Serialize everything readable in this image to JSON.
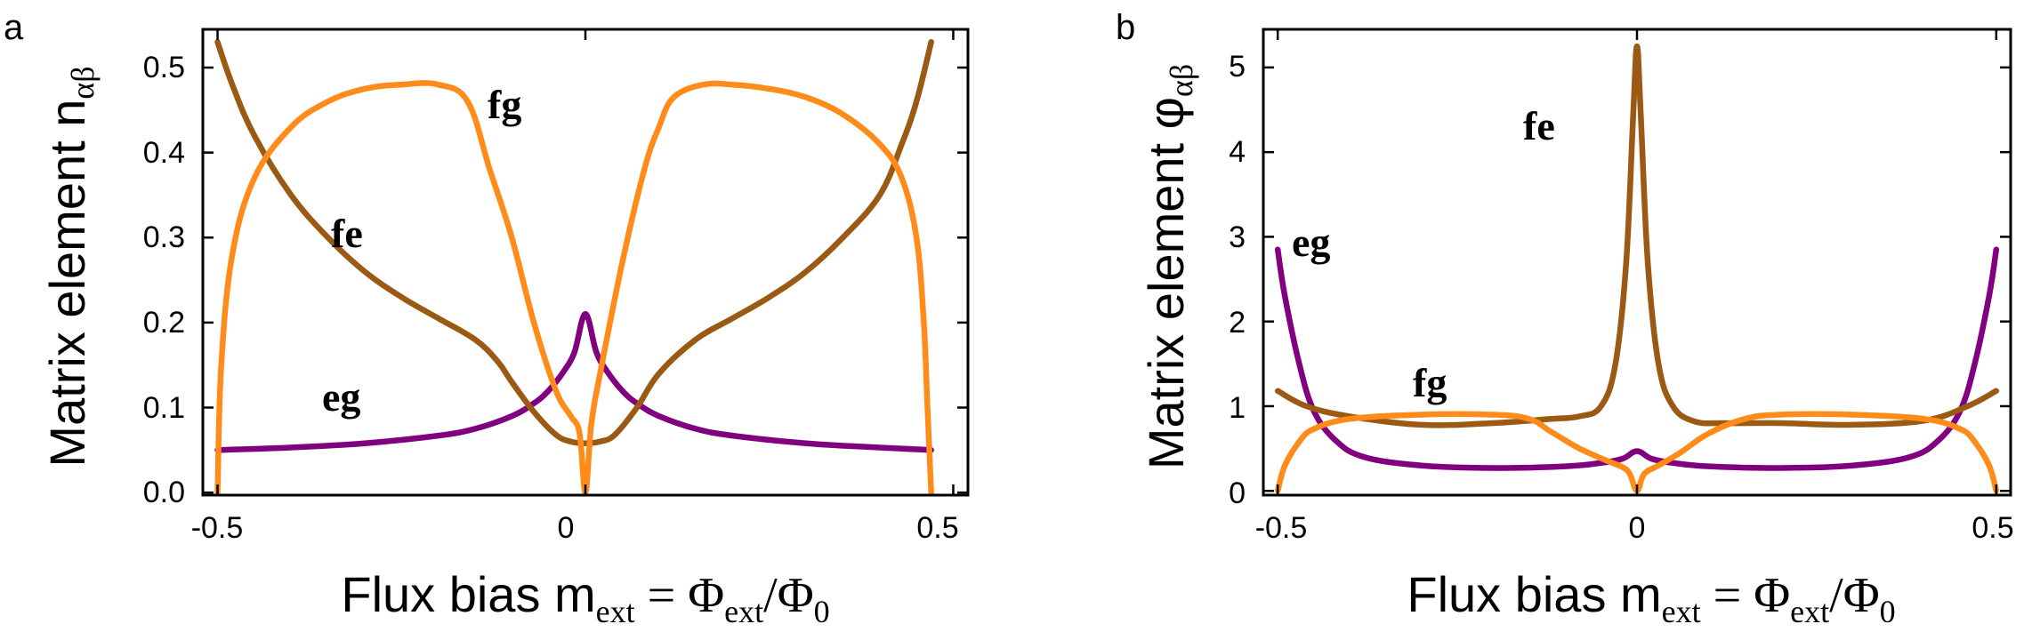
{
  "colors": {
    "eg": "#800080",
    "fe": "#9B5A14",
    "fg": "#FF8C1A"
  },
  "chart_data": [
    {
      "panel": "a",
      "type": "line",
      "title": "",
      "xlabel": {
        "main": "Flux bias m",
        "sub": "ext",
        "eq": " = Φ",
        "sub2": "ext",
        "slash": "/Φ",
        "sub3": "0"
      },
      "ylabel": {
        "main": "Matrix element n",
        "sub": "αβ"
      },
      "xlim": [
        -0.52,
        0.52
      ],
      "ylim": [
        -0.003,
        0.545
      ],
      "xticks": [
        -0.5,
        0,
        0.5
      ],
      "xtick_labels": [
        "-0.5",
        "0",
        "0.5"
      ],
      "yticks": [
        0.0,
        0.1,
        0.2,
        0.3,
        0.4,
        0.5
      ],
      "ytick_labels": [
        "0.0",
        "0.1",
        "0.2",
        "0.3",
        "0.4",
        "0.5"
      ],
      "annotations": [
        {
          "text": "fg",
          "x": -0.03,
          "y": 0.445,
          "series": "fg"
        },
        {
          "text": "fe",
          "x": -0.27,
          "y": 0.29,
          "series": "fe"
        },
        {
          "text": "eg",
          "x": -0.29,
          "y": 0.105,
          "series": "eg"
        }
      ],
      "series": [
        {
          "name": "eg",
          "color_key": "eg",
          "points": [
            [
              -0.5,
              0.05
            ],
            [
              -0.4,
              0.053
            ],
            [
              -0.3,
              0.058
            ],
            [
              -0.2,
              0.067
            ],
            [
              -0.15,
              0.075
            ],
            [
              -0.1,
              0.09
            ],
            [
              -0.07,
              0.105
            ],
            [
              -0.05,
              0.12
            ],
            [
              -0.03,
              0.142
            ],
            [
              -0.015,
              0.165
            ],
            [
              0,
              0.21
            ],
            [
              0.015,
              0.165
            ],
            [
              0.03,
              0.142
            ],
            [
              0.05,
              0.12
            ],
            [
              0.07,
              0.105
            ],
            [
              0.1,
              0.09
            ],
            [
              0.15,
              0.075
            ],
            [
              0.2,
              0.067
            ],
            [
              0.3,
              0.058
            ],
            [
              0.4,
              0.053
            ],
            [
              0.47,
              0.05
            ]
          ]
        },
        {
          "name": "fe",
          "color_key": "fe",
          "points": [
            [
              -0.5,
              0.53
            ],
            [
              -0.48,
              0.48
            ],
            [
              -0.45,
              0.42
            ],
            [
              -0.4,
              0.35
            ],
            [
              -0.35,
              0.3
            ],
            [
              -0.3,
              0.26
            ],
            [
              -0.25,
              0.23
            ],
            [
              -0.2,
              0.205
            ],
            [
              -0.15,
              0.18
            ],
            [
              -0.12,
              0.155
            ],
            [
              -0.1,
              0.13
            ],
            [
              -0.07,
              0.095
            ],
            [
              -0.04,
              0.068
            ],
            [
              -0.02,
              0.06
            ],
            [
              0,
              0.058
            ],
            [
              0.02,
              0.06
            ],
            [
              0.04,
              0.068
            ],
            [
              0.07,
              0.1
            ],
            [
              0.1,
              0.14
            ],
            [
              0.15,
              0.18
            ],
            [
              0.2,
              0.205
            ],
            [
              0.25,
              0.23
            ],
            [
              0.3,
              0.26
            ],
            [
              0.35,
              0.3
            ],
            [
              0.4,
              0.35
            ],
            [
              0.43,
              0.41
            ],
            [
              0.45,
              0.46
            ],
            [
              0.47,
              0.53
            ]
          ]
        },
        {
          "name": "fg",
          "color_key": "fg",
          "points": [
            [
              -0.5,
              0.0
            ],
            [
              -0.495,
              0.15
            ],
            [
              -0.48,
              0.28
            ],
            [
              -0.45,
              0.37
            ],
            [
              -0.4,
              0.43
            ],
            [
              -0.35,
              0.46
            ],
            [
              -0.3,
              0.475
            ],
            [
              -0.25,
              0.48
            ],
            [
              -0.2,
              0.48
            ],
            [
              -0.16,
              0.46
            ],
            [
              -0.13,
              0.38
            ],
            [
              -0.1,
              0.3
            ],
            [
              -0.07,
              0.2
            ],
            [
              -0.04,
              0.12
            ],
            [
              -0.02,
              0.09
            ],
            [
              -0.008,
              0.07
            ],
            [
              0,
              0.0
            ],
            [
              0.008,
              0.08
            ],
            [
              0.02,
              0.14
            ],
            [
              0.05,
              0.27
            ],
            [
              0.08,
              0.38
            ],
            [
              0.1,
              0.43
            ],
            [
              0.12,
              0.465
            ],
            [
              0.16,
              0.48
            ],
            [
              0.2,
              0.48
            ],
            [
              0.25,
              0.475
            ],
            [
              0.3,
              0.465
            ],
            [
              0.35,
              0.445
            ],
            [
              0.4,
              0.41
            ],
            [
              0.43,
              0.37
            ],
            [
              0.45,
              0.3
            ],
            [
              0.46,
              0.2
            ],
            [
              0.465,
              0.1
            ],
            [
              0.47,
              0.0
            ]
          ]
        }
      ]
    },
    {
      "panel": "b",
      "type": "line",
      "title": "",
      "xlabel": {
        "main": "Flux bias m",
        "sub": "ext",
        "eq": " = Φ",
        "sub2": "ext",
        "slash": "/Φ",
        "sub3": "0"
      },
      "ylabel": {
        "main": "Matrix element φ",
        "sub": "αβ"
      },
      "xlim": [
        -0.52,
        0.52
      ],
      "ylim": [
        -0.05,
        5.45
      ],
      "xticks": [
        -0.5,
        0,
        0.5
      ],
      "xtick_labels": [
        "-0.5",
        "0",
        "0.5"
      ],
      "yticks": [
        0,
        1,
        2,
        3,
        4,
        5
      ],
      "ytick_labels": [
        "0",
        "1",
        "2",
        "3",
        "4",
        "5"
      ],
      "annotations": [
        {
          "text": "fe",
          "x": -0.09,
          "y": 4.2,
          "series": "fe"
        },
        {
          "text": "eg",
          "x": -0.42,
          "y": 2.7,
          "series": "eg"
        },
        {
          "text": "fg",
          "x": -0.25,
          "y": 1.18,
          "series": "fg"
        }
      ],
      "series": [
        {
          "name": "eg",
          "color_key": "eg",
          "points": [
            [
              -0.5,
              2.85
            ],
            [
              -0.49,
              2.3
            ],
            [
              -0.47,
              1.5
            ],
            [
              -0.45,
              0.95
            ],
            [
              -0.42,
              0.6
            ],
            [
              -0.38,
              0.4
            ],
            [
              -0.3,
              0.3
            ],
            [
              -0.2,
              0.27
            ],
            [
              -0.1,
              0.29
            ],
            [
              -0.05,
              0.33
            ],
            [
              -0.02,
              0.38
            ],
            [
              0,
              0.47
            ],
            [
              0.02,
              0.38
            ],
            [
              0.05,
              0.33
            ],
            [
              0.1,
              0.29
            ],
            [
              0.2,
              0.27
            ],
            [
              0.3,
              0.3
            ],
            [
              0.38,
              0.4
            ],
            [
              0.42,
              0.6
            ],
            [
              0.45,
              0.95
            ],
            [
              0.47,
              1.5
            ],
            [
              0.49,
              2.3
            ],
            [
              0.5,
              2.85
            ]
          ]
        },
        {
          "name": "fe",
          "color_key": "fe",
          "points": [
            [
              -0.5,
              1.18
            ],
            [
              -0.46,
              1.0
            ],
            [
              -0.4,
              0.88
            ],
            [
              -0.3,
              0.78
            ],
            [
              -0.2,
              0.8
            ],
            [
              -0.12,
              0.85
            ],
            [
              -0.08,
              0.88
            ],
            [
              -0.05,
              1.0
            ],
            [
              -0.03,
              1.5
            ],
            [
              -0.015,
              2.7
            ],
            [
              -0.005,
              4.5
            ],
            [
              0,
              5.25
            ],
            [
              0.005,
              4.5
            ],
            [
              0.015,
              2.7
            ],
            [
              0.03,
              1.5
            ],
            [
              0.05,
              1.0
            ],
            [
              0.08,
              0.82
            ],
            [
              0.12,
              0.8
            ],
            [
              0.2,
              0.8
            ],
            [
              0.3,
              0.78
            ],
            [
              0.4,
              0.83
            ],
            [
              0.46,
              1.0
            ],
            [
              0.5,
              1.18
            ]
          ]
        },
        {
          "name": "fg",
          "color_key": "fg",
          "points": [
            [
              -0.5,
              0.0
            ],
            [
              -0.49,
              0.3
            ],
            [
              -0.47,
              0.58
            ],
            [
              -0.45,
              0.73
            ],
            [
              -0.4,
              0.85
            ],
            [
              -0.3,
              0.9
            ],
            [
              -0.2,
              0.9
            ],
            [
              -0.15,
              0.85
            ],
            [
              -0.12,
              0.7
            ],
            [
              -0.08,
              0.5
            ],
            [
              -0.04,
              0.35
            ],
            [
              -0.02,
              0.28
            ],
            [
              -0.01,
              0.2
            ],
            [
              0,
              0.0
            ],
            [
              0.01,
              0.2
            ],
            [
              0.03,
              0.3
            ],
            [
              0.06,
              0.45
            ],
            [
              0.1,
              0.68
            ],
            [
              0.15,
              0.85
            ],
            [
              0.2,
              0.9
            ],
            [
              0.3,
              0.9
            ],
            [
              0.4,
              0.85
            ],
            [
              0.45,
              0.73
            ],
            [
              0.47,
              0.58
            ],
            [
              0.49,
              0.3
            ],
            [
              0.5,
              0.0
            ]
          ]
        }
      ]
    }
  ]
}
